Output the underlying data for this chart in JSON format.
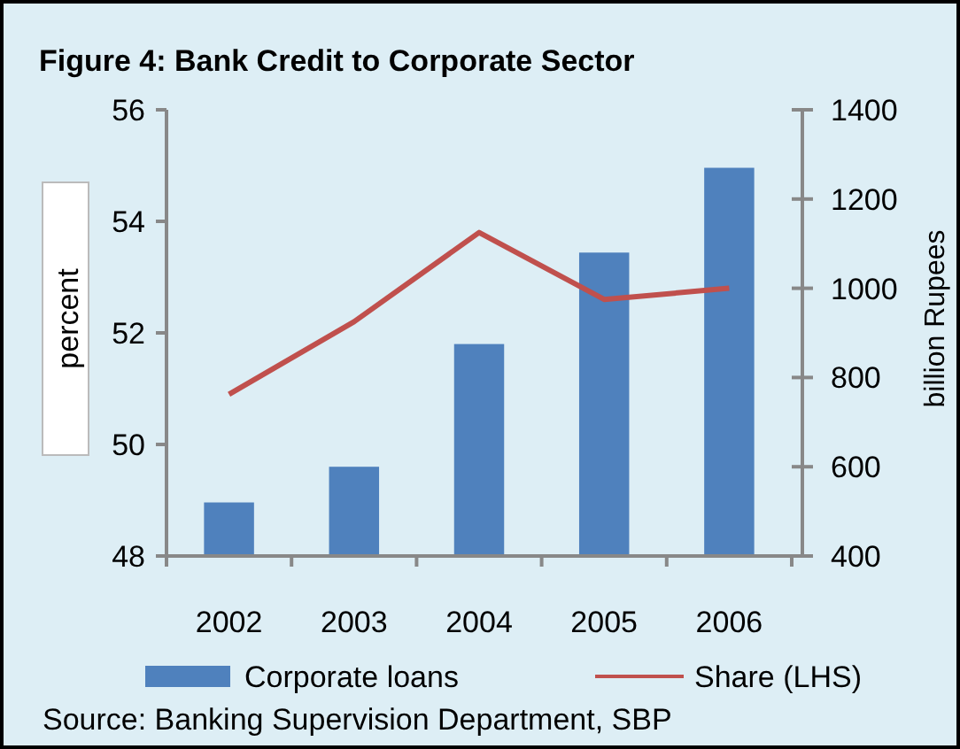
{
  "chart_data": {
    "type": "bar",
    "title": "Figure 4: Bank Credit to Corporate Sector",
    "categories": [
      "2002",
      "2003",
      "2004",
      "2005",
      "2006"
    ],
    "series": [
      {
        "name": "Corporate loans",
        "axis": "y2",
        "color": "#4f81bd",
        "values": [
          520,
          600,
          875,
          1080,
          1270
        ]
      },
      {
        "name": "Share (LHS)",
        "type": "line",
        "color": "#c0504d",
        "values": [
          50.9,
          52.2,
          53.8,
          52.6,
          52.8
        ]
      }
    ],
    "ylabel": "percent",
    "y2label": "billion Rupees",
    "ylim": [
      48,
      56
    ],
    "yticks": [
      48,
      50,
      52,
      54,
      56
    ],
    "y2lim": [
      400,
      1400
    ],
    "y2ticks": [
      400,
      600,
      800,
      1000,
      1200,
      1400
    ],
    "grid": false,
    "legend": "bottom",
    "annotations": [
      "Source: Banking Supervision Department, SBP"
    ]
  }
}
